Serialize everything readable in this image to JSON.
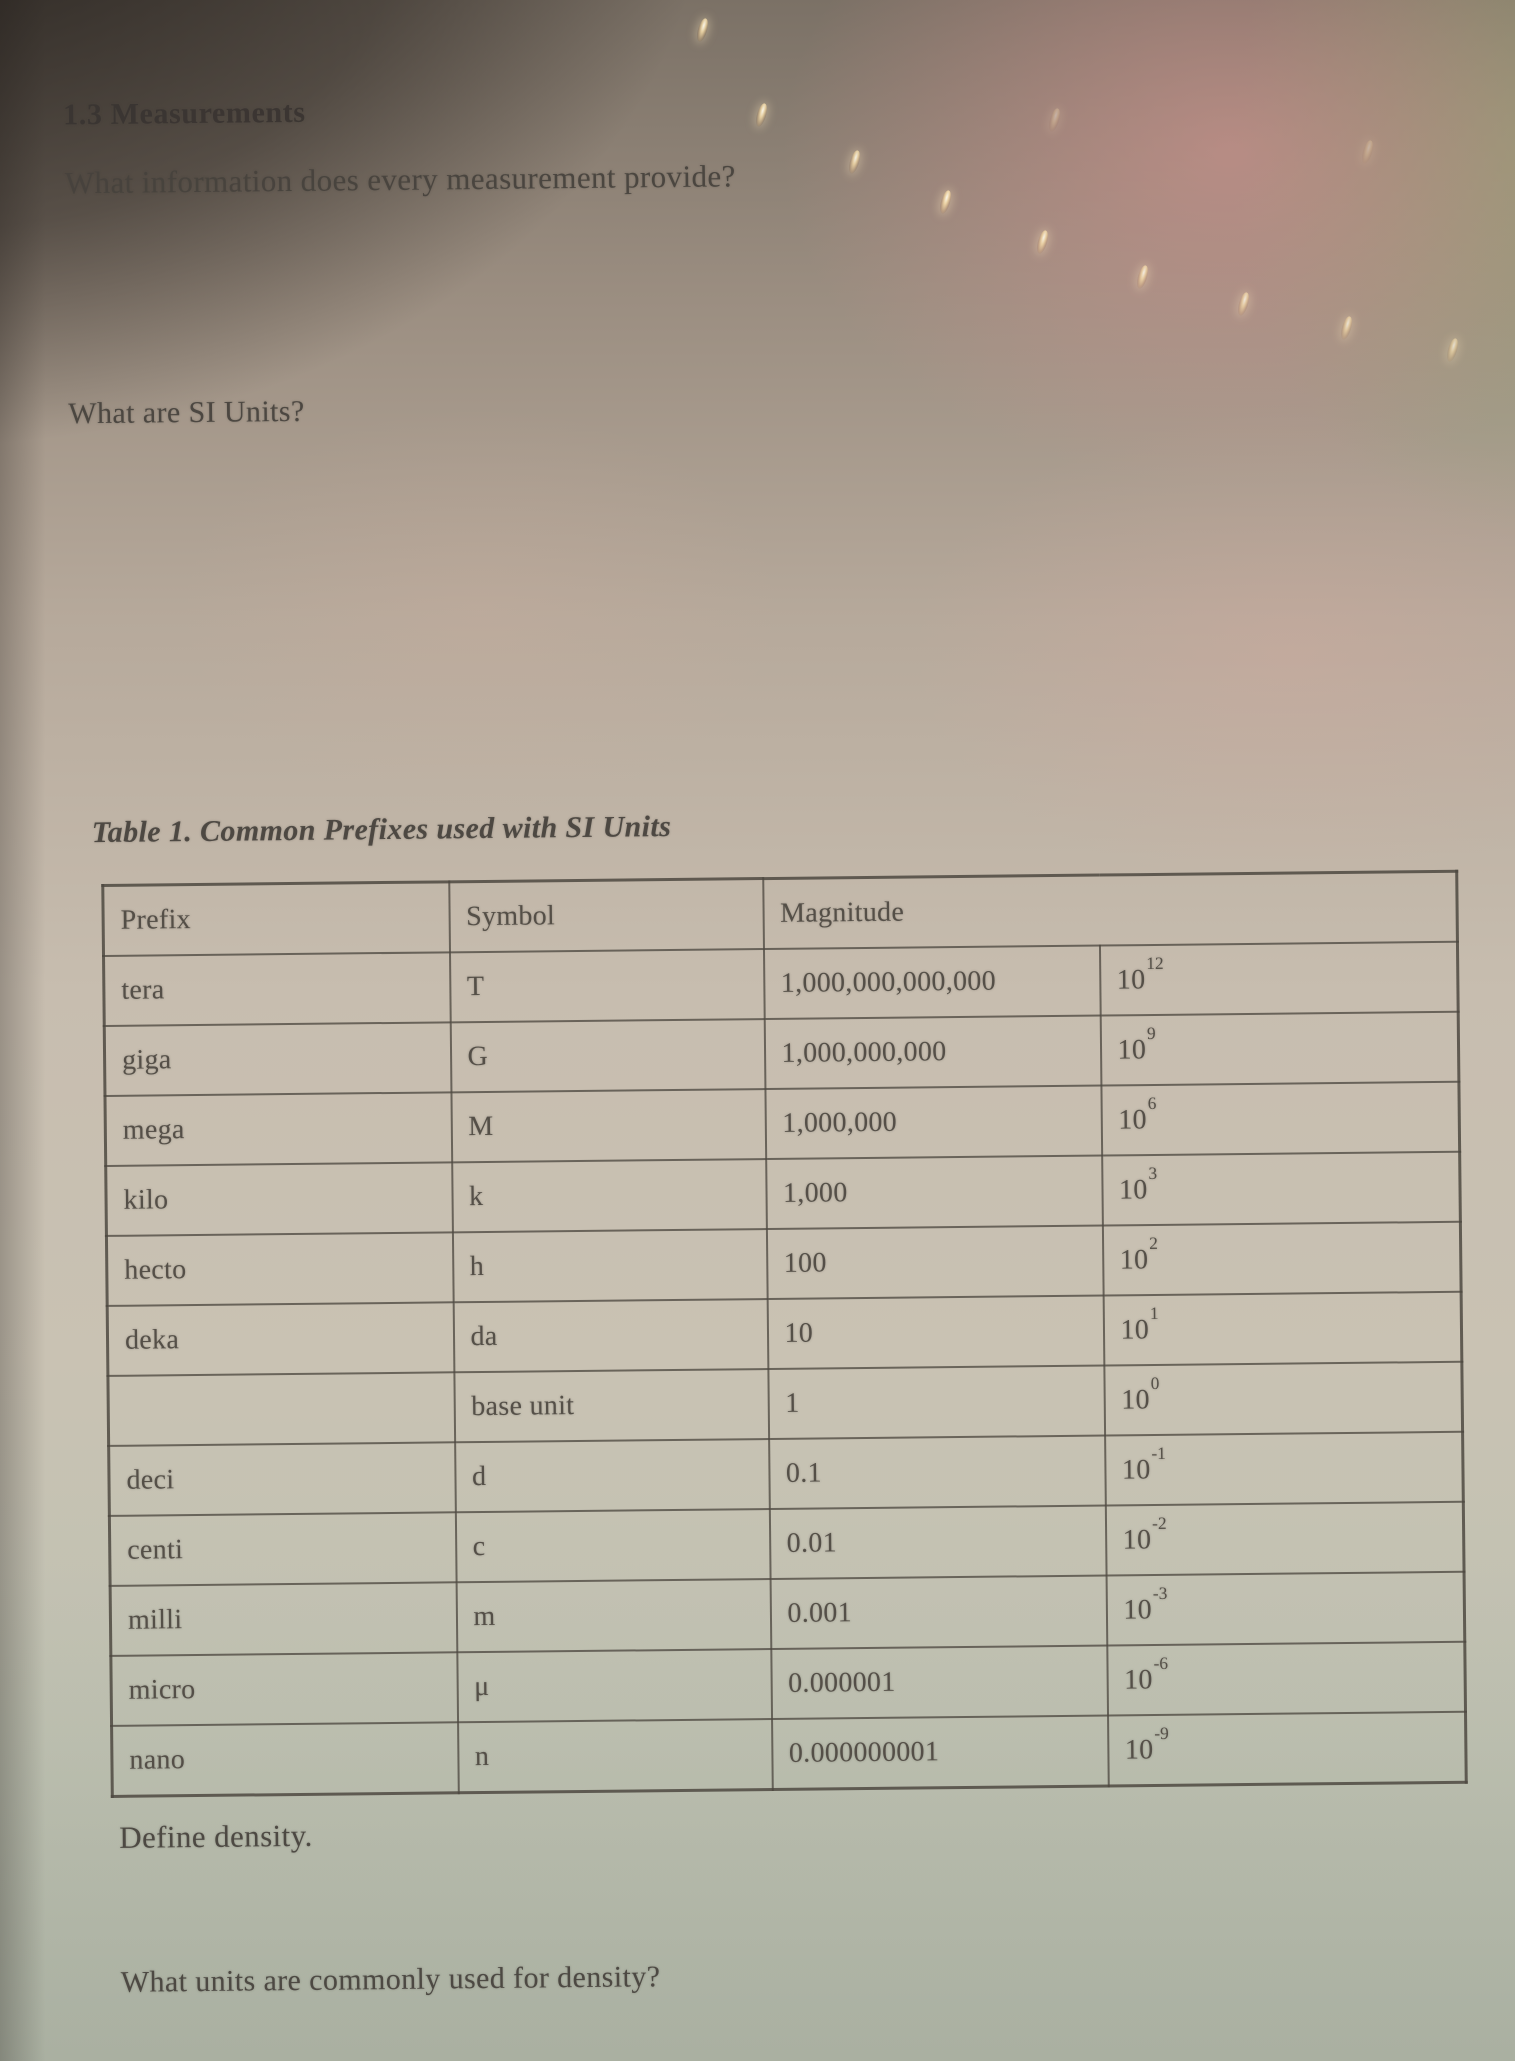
{
  "document": {
    "section_title": "1.3 Measurements",
    "questions": {
      "measurement_info": "What information does every measurement provide?",
      "si_units": "What are SI Units?",
      "define_density": "Define density.",
      "density_units": "What units are commonly used for density?"
    }
  },
  "prefix_table": {
    "caption": "Table 1. Common Prefixes used with SI Units",
    "columns": [
      "Prefix",
      "Symbol",
      "Magnitude"
    ],
    "power_base": "10",
    "rows": [
      {
        "prefix": "tera",
        "symbol": "T",
        "magnitude": "1,000,000,000,000",
        "exponent": "12"
      },
      {
        "prefix": "giga",
        "symbol": "G",
        "magnitude": "1,000,000,000",
        "exponent": "9"
      },
      {
        "prefix": "mega",
        "symbol": "M",
        "magnitude": "1,000,000",
        "exponent": "6"
      },
      {
        "prefix": "kilo",
        "symbol": "k",
        "magnitude": "1,000",
        "exponent": "3"
      },
      {
        "prefix": "hecto",
        "symbol": "h",
        "magnitude": "100",
        "exponent": "2"
      },
      {
        "prefix": "deka",
        "symbol": "da",
        "magnitude": "10",
        "exponent": "1"
      },
      {
        "prefix": "",
        "symbol": "base unit",
        "magnitude": "1",
        "exponent": "0"
      },
      {
        "prefix": "deci",
        "symbol": "d",
        "magnitude": "0.1",
        "exponent": "-1"
      },
      {
        "prefix": "centi",
        "symbol": "c",
        "magnitude": "0.01",
        "exponent": "-2"
      },
      {
        "prefix": "milli",
        "symbol": "m",
        "magnitude": "0.001",
        "exponent": "-3"
      },
      {
        "prefix": "micro",
        "symbol": "μ",
        "magnitude": "0.000001",
        "exponent": "-6"
      },
      {
        "prefix": "nano",
        "symbol": "n",
        "magnitude": "0.000000001",
        "exponent": "-9"
      }
    ]
  },
  "photo": {
    "accent_colors": {
      "page_beige": "#c6bcae",
      "glow_pink": "#c39b95",
      "glow_green": "#9fa78e",
      "shadow_brown": "#4a423c",
      "sparkle": "#ffe9c4"
    }
  }
}
